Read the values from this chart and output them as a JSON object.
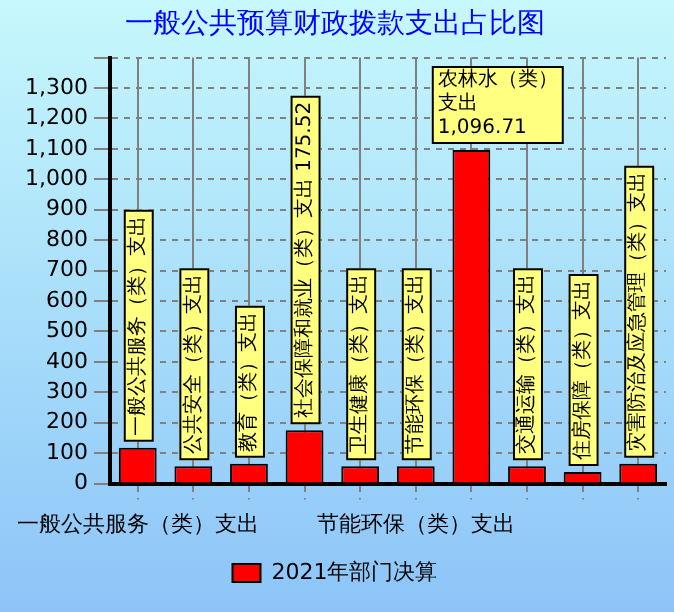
{
  "chart_data": {
    "type": "bar",
    "title": "一般公共预算财政拨款支出占比图",
    "categories": [
      "一般公共服务（类）支出",
      null,
      null,
      null,
      null,
      "节能环保（类）支出",
      null,
      null,
      null,
      null
    ],
    "series": [
      {
        "name": "2021年部门决算",
        "color": "#ff0000",
        "values": [
          118,
          57,
          65,
          175.52,
          57,
          57,
          1096.71,
          57,
          38,
          65
        ],
        "value_labels": [
          "一般公共服务（类）支出",
          "公共安全（类）支出",
          "教育（类）支出",
          "社会保障和就业（类）支出 175.52",
          "卫生健康（类）支出",
          "节能环保（类）支出",
          "农林水（类）支出 1,096.71",
          "交通运输（类）支出",
          "住房保障（类）支出",
          "灾害防治及应急管理（类）支出"
        ]
      }
    ],
    "ylim": [
      0,
      1400
    ],
    "yticks": [
      0,
      100,
      200,
      300,
      400,
      500,
      600,
      700,
      800,
      900,
      {
        "value": 1000,
        "label": "1,000"
      },
      {
        "value": 1100,
        "label": "1,100"
      },
      {
        "value": 1200,
        "label": "1,200"
      },
      {
        "value": 1300,
        "label": "1,300"
      },
      {
        "value": 1400,
        "label": null
      }
    ],
    "grid": true,
    "legend": "bottom"
  }
}
